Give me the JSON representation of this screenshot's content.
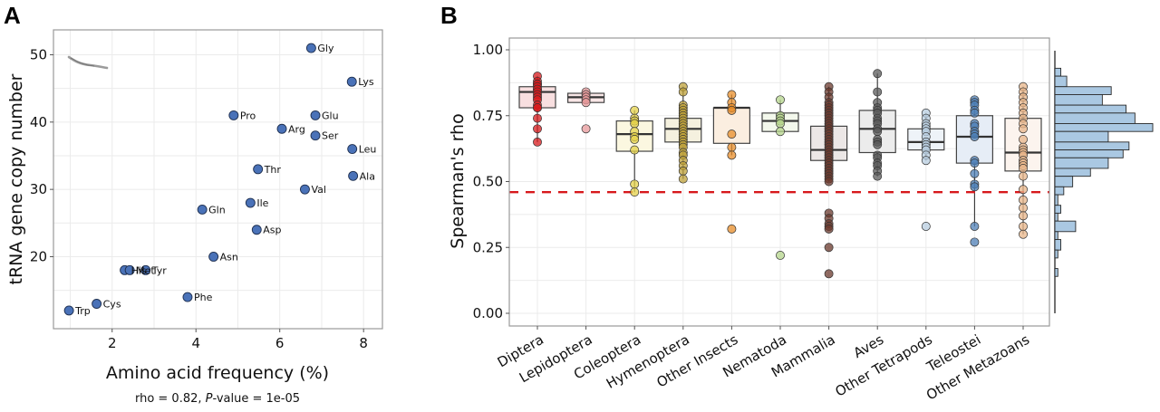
{
  "figure": {
    "panel_a_letter": "A",
    "panel_b_letter": "B"
  },
  "chart_data": [
    {
      "type": "scatter",
      "panel": "A",
      "title": "",
      "xlabel": "Amino acid frequency (%)",
      "ylabel": "tRNA gene copy number",
      "caption_prefix": "rho = 0.82, ",
      "caption_italic": "P",
      "caption_suffix": "-value = 1e-05",
      "xlim": [
        0.6,
        8.45
      ],
      "ylim": [
        9.3,
        53.7
      ],
      "xticks": [
        2,
        4,
        6,
        8
      ],
      "xtick_labels": [
        "2",
        "4",
        "6",
        "8"
      ],
      "yticks": [
        20,
        30,
        40,
        50
      ],
      "ytick_labels": [
        "20",
        "30",
        "40",
        "50"
      ],
      "grid": true,
      "point_color": "#4a72b8",
      "organism_icon": "worm-icon",
      "points": [
        {
          "label": "Gly",
          "x": 6.75,
          "y": 51
        },
        {
          "label": "Lys",
          "x": 7.72,
          "y": 46
        },
        {
          "label": "Pro",
          "x": 4.9,
          "y": 41
        },
        {
          "label": "Glu",
          "x": 6.85,
          "y": 41
        },
        {
          "label": "Arg",
          "x": 6.05,
          "y": 39
        },
        {
          "label": "Ser",
          "x": 6.85,
          "y": 38
        },
        {
          "label": "Leu",
          "x": 7.73,
          "y": 36
        },
        {
          "label": "Thr",
          "x": 5.48,
          "y": 33
        },
        {
          "label": "Ala",
          "x": 7.75,
          "y": 32
        },
        {
          "label": "Val",
          "x": 6.6,
          "y": 30
        },
        {
          "label": "Ile",
          "x": 5.3,
          "y": 28
        },
        {
          "label": "Gln",
          "x": 4.15,
          "y": 27
        },
        {
          "label": "Asp",
          "x": 5.45,
          "y": 24
        },
        {
          "label": "Asn",
          "x": 4.42,
          "y": 20
        },
        {
          "label": "His",
          "x": 2.3,
          "y": 18
        },
        {
          "label": "Met",
          "x": 2.42,
          "y": 18
        },
        {
          "label": "Tyr",
          "x": 2.8,
          "y": 18
        },
        {
          "label": "Phe",
          "x": 3.8,
          "y": 14
        },
        {
          "label": "Cys",
          "x": 1.63,
          "y": 13
        },
        {
          "label": "Trp",
          "x": 0.97,
          "y": 12
        }
      ]
    },
    {
      "type": "box",
      "panel": "B",
      "title": "",
      "xlabel": "",
      "ylabel": "Spearman's rho",
      "ylim": [
        -0.05,
        1.05
      ],
      "yticks": [
        0,
        0.25,
        0.5,
        0.75,
        1.0
      ],
      "ytick_labels": [
        "0.00",
        "0.25",
        "0.50",
        "0.75",
        "1.00"
      ],
      "grid": true,
      "reference_line": {
        "value": 0.46,
        "style": "dashed",
        "color": "#d7191c"
      },
      "categories": [
        "Diptera",
        "Lepidoptera",
        "Coleoptera",
        "Hymenoptera",
        "Other Insects",
        "Nematoda",
        "Mammalia",
        "Aves",
        "Other Tetrapods",
        "Teleostei",
        "Other Metazoans"
      ],
      "groups": [
        {
          "name": "Diptera",
          "color": "#d7191c",
          "fill": "#f8dfe0",
          "q1": 0.78,
          "median": 0.84,
          "q3": 0.86,
          "whisker_low": 0.65,
          "whisker_high": 0.9,
          "points": [
            0.9,
            0.88,
            0.87,
            0.87,
            0.86,
            0.85,
            0.85,
            0.84,
            0.83,
            0.82,
            0.81,
            0.79,
            0.78,
            0.78,
            0.74,
            0.7,
            0.65
          ]
        },
        {
          "name": "Lepidoptera",
          "color": "#e8999b",
          "fill": "#f8e6e6",
          "q1": 0.8,
          "median": 0.82,
          "q3": 0.835,
          "whisker_low": 0.8,
          "whisker_high": 0.835,
          "points": [
            0.84,
            0.83,
            0.82,
            0.81,
            0.8,
            0.7
          ]
        },
        {
          "name": "Coleoptera",
          "color": "#e4d24a",
          "fill": "#fbf7e0",
          "q1": 0.615,
          "median": 0.68,
          "q3": 0.73,
          "whisker_low": 0.46,
          "whisker_high": 0.77,
          "points": [
            0.77,
            0.74,
            0.73,
            0.72,
            0.69,
            0.67,
            0.66,
            0.62,
            0.49,
            0.46
          ]
        },
        {
          "name": "Hymenoptera",
          "color": "#bfa23a",
          "fill": "#f5f1df",
          "q1": 0.65,
          "median": 0.7,
          "q3": 0.74,
          "whisker_low": 0.51,
          "whisker_high": 0.86,
          "points": [
            0.86,
            0.84,
            0.79,
            0.78,
            0.77,
            0.76,
            0.75,
            0.74,
            0.73,
            0.72,
            0.71,
            0.7,
            0.69,
            0.68,
            0.67,
            0.66,
            0.65,
            0.64,
            0.63,
            0.61,
            0.6,
            0.58,
            0.56,
            0.54,
            0.51
          ]
        },
        {
          "name": "Other Insects",
          "color": "#e88d2a",
          "fill": "#fbeee0",
          "q1": 0.645,
          "median": 0.78,
          "q3": 0.78,
          "whisker_low": 0.6,
          "whisker_high": 0.83,
          "points": [
            0.83,
            0.8,
            0.78,
            0.77,
            0.68,
            0.63,
            0.6,
            0.32
          ]
        },
        {
          "name": "Nematoda",
          "color": "#b5d68c",
          "fill": "#f3f8ec",
          "q1": 0.69,
          "median": 0.73,
          "q3": 0.76,
          "whisker_low": 0.69,
          "whisker_high": 0.81,
          "points": [
            0.81,
            0.75,
            0.74,
            0.73,
            0.72,
            0.69,
            0.22
          ]
        },
        {
          "name": "Mammalia",
          "color": "#6b3a2e",
          "fill": "#ece7e6",
          "q1": 0.58,
          "median": 0.62,
          "q3": 0.71,
          "whisker_low": 0.5,
          "whisker_high": 0.86,
          "points": [
            0.86,
            0.84,
            0.82,
            0.8,
            0.79,
            0.78,
            0.77,
            0.76,
            0.75,
            0.74,
            0.73,
            0.72,
            0.71,
            0.7,
            0.69,
            0.68,
            0.67,
            0.66,
            0.65,
            0.64,
            0.63,
            0.62,
            0.61,
            0.6,
            0.59,
            0.58,
            0.57,
            0.56,
            0.55,
            0.54,
            0.53,
            0.52,
            0.51,
            0.5,
            0.38,
            0.36,
            0.34,
            0.33,
            0.32,
            0.25,
            0.15
          ]
        },
        {
          "name": "Aves",
          "color": "#5a5a5a",
          "fill": "#ececec",
          "q1": 0.61,
          "median": 0.7,
          "q3": 0.77,
          "whisker_low": 0.52,
          "whisker_high": 0.91,
          "points": [
            0.91,
            0.84,
            0.8,
            0.78,
            0.77,
            0.76,
            0.74,
            0.73,
            0.72,
            0.7,
            0.69,
            0.66,
            0.65,
            0.64,
            0.6,
            0.59,
            0.57,
            0.56,
            0.54,
            0.52
          ]
        },
        {
          "name": "Other Tetrapods",
          "color": "#b8cde0",
          "fill": "#eef3f8",
          "q1": 0.62,
          "median": 0.65,
          "q3": 0.7,
          "whisker_low": 0.58,
          "whisker_high": 0.76,
          "points": [
            0.76,
            0.74,
            0.72,
            0.71,
            0.7,
            0.69,
            0.67,
            0.65,
            0.64,
            0.63,
            0.62,
            0.6,
            0.58,
            0.33
          ]
        },
        {
          "name": "Teleostei",
          "color": "#4e7fb5",
          "fill": "#e6edf6",
          "q1": 0.57,
          "median": 0.67,
          "q3": 0.75,
          "whisker_low": 0.33,
          "whisker_high": 0.81,
          "points": [
            0.81,
            0.8,
            0.79,
            0.77,
            0.76,
            0.72,
            0.71,
            0.69,
            0.68,
            0.67,
            0.58,
            0.57,
            0.53,
            0.49,
            0.48,
            0.33,
            0.27
          ]
        },
        {
          "name": "Other Metazoans",
          "color": "#e8b58a",
          "fill": "#fcf4ee",
          "q1": 0.54,
          "median": 0.61,
          "q3": 0.74,
          "whisker_low": 0.3,
          "whisker_high": 0.86,
          "points": [
            0.86,
            0.84,
            0.82,
            0.8,
            0.78,
            0.76,
            0.74,
            0.72,
            0.7,
            0.66,
            0.63,
            0.62,
            0.61,
            0.6,
            0.58,
            0.57,
            0.56,
            0.55,
            0.52,
            0.47,
            0.43,
            0.4,
            0.37,
            0.33,
            0.3
          ]
        }
      ],
      "marginal_histogram": {
        "orientation": "horizontal",
        "color": "#aac8e2",
        "bins_top_to_bottom": [
          {
            "from": 0.9,
            "to": 0.93,
            "count": 2
          },
          {
            "from": 0.86,
            "to": 0.9,
            "count": 4
          },
          {
            "from": 0.83,
            "to": 0.86,
            "count": 19
          },
          {
            "from": 0.79,
            "to": 0.83,
            "count": 16
          },
          {
            "from": 0.76,
            "to": 0.79,
            "count": 24
          },
          {
            "from": 0.72,
            "to": 0.76,
            "count": 27
          },
          {
            "from": 0.69,
            "to": 0.72,
            "count": 33
          },
          {
            "from": 0.65,
            "to": 0.69,
            "count": 18
          },
          {
            "from": 0.62,
            "to": 0.65,
            "count": 25
          },
          {
            "from": 0.59,
            "to": 0.62,
            "count": 23
          },
          {
            "from": 0.55,
            "to": 0.59,
            "count": 18
          },
          {
            "from": 0.52,
            "to": 0.55,
            "count": 12
          },
          {
            "from": 0.48,
            "to": 0.52,
            "count": 6
          },
          {
            "from": 0.45,
            "to": 0.48,
            "count": 3
          },
          {
            "from": 0.41,
            "to": 0.45,
            "count": 1
          },
          {
            "from": 0.38,
            "to": 0.41,
            "count": 2
          },
          {
            "from": 0.35,
            "to": 0.38,
            "count": 1
          },
          {
            "from": 0.31,
            "to": 0.35,
            "count": 7
          },
          {
            "from": 0.28,
            "to": 0.31,
            "count": 1
          },
          {
            "from": 0.24,
            "to": 0.28,
            "count": 2
          },
          {
            "from": 0.21,
            "to": 0.24,
            "count": 1
          },
          {
            "from": 0.17,
            "to": 0.21,
            "count": 0
          },
          {
            "from": 0.14,
            "to": 0.17,
            "count": 1
          }
        ]
      }
    }
  ]
}
